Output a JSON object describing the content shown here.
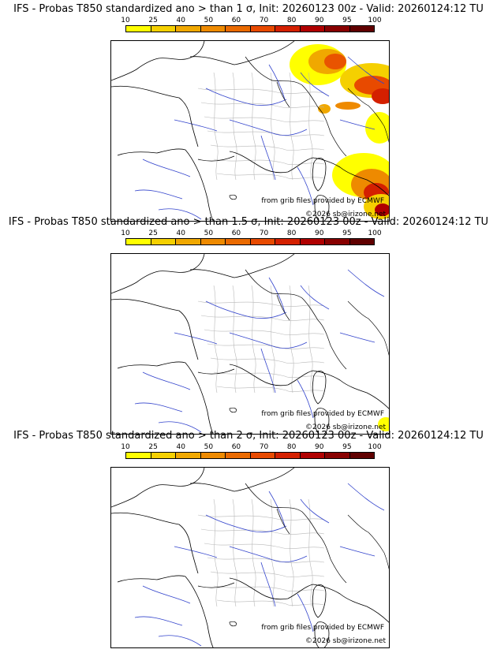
{
  "colorbar": {
    "labels": [
      "10",
      "25",
      "40",
      "50",
      "60",
      "70",
      "80",
      "90",
      "95",
      "100"
    ],
    "colors": [
      "#ffff00",
      "#f5d000",
      "#f0a800",
      "#ee8a00",
      "#ea6a00",
      "#e84a00",
      "#d42000",
      "#b00000",
      "#880000",
      "#600000"
    ]
  },
  "panels": [
    {
      "title": "IFS - Probas T850  standardized ano > than 1 σ, Init: 20260123 00z - Valid: 20260124:12 TU",
      "source": "from grib files provided by ECMWF",
      "copyright": "©2026 sb@irizone.net"
    },
    {
      "title": "IFS - Probas T850  standardized ano > than 1.5 σ, Init: 20260123 00z - Valid: 20260124:12 TU",
      "source": "from grib files provided by ECMWF",
      "copyright": "©2026 sb@irizone.net"
    },
    {
      "title": "IFS - Probas T850  standardized ano > than 2 σ, Init: 20260123 00z - Valid: 20260124:12 TU",
      "source": "from grib files provided by ECMWF",
      "copyright": "©2026 sb@irizone.net"
    }
  ]
}
